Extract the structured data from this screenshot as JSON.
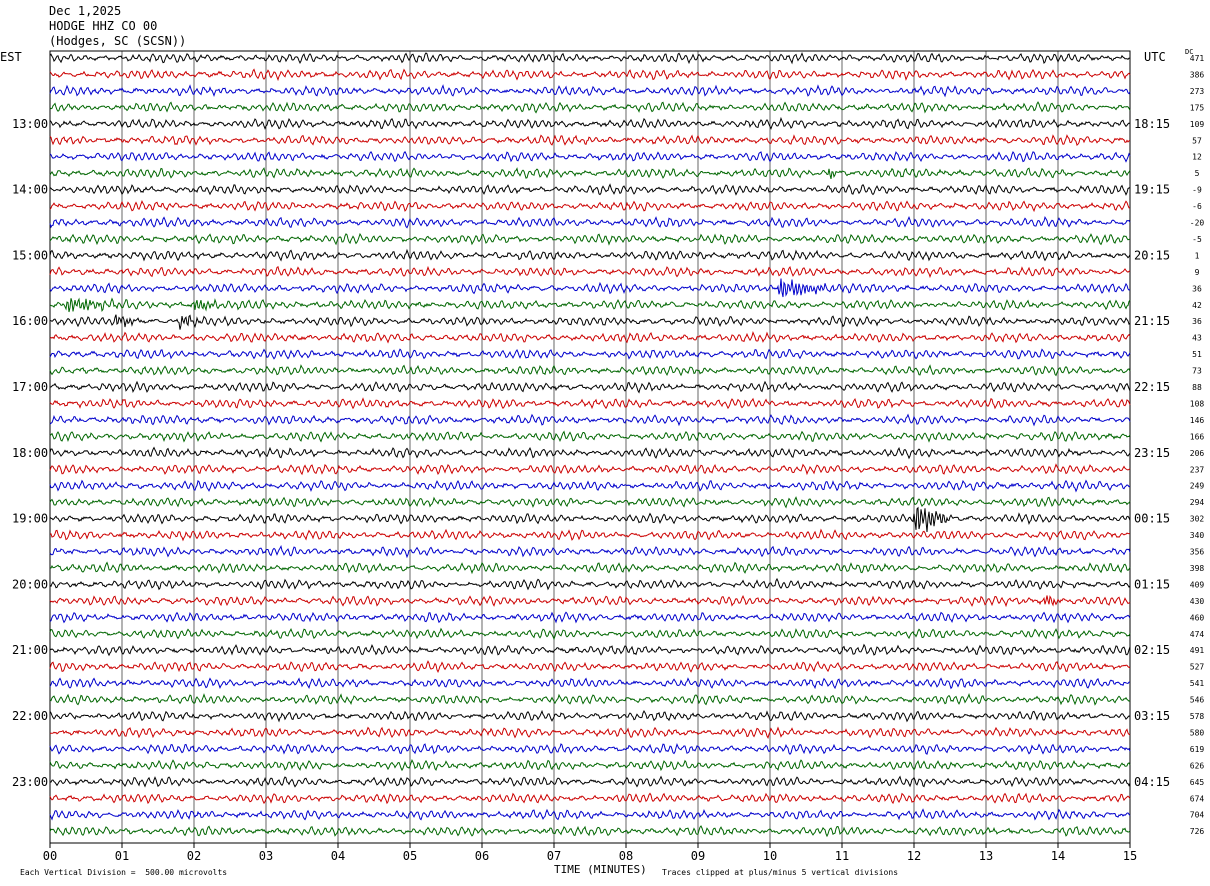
{
  "header": {
    "date": "Dec 1,2025",
    "station": "HODGE HHZ CO 00",
    "location": "(Hodges, SC (SCSN))"
  },
  "left_tz": "EST",
  "right_tz": "UTC",
  "dc_label": "DC",
  "footer": {
    "scale": "Each Vertical Division =  500.00 microvolts",
    "xlabel": "TIME (MINUTES)",
    "clip": "Traces clipped at plus/minus 5 vertical divisions"
  },
  "chart_data": {
    "type": "line",
    "title": "",
    "xlabel": "TIME (MINUTES)",
    "xlim": [
      0,
      15
    ],
    "x_ticks": [
      "00",
      "01",
      "02",
      "03",
      "04",
      "05",
      "06",
      "07",
      "08",
      "09",
      "10",
      "11",
      "12",
      "13",
      "14",
      "15"
    ],
    "rows_per_hour": 4,
    "minutes_per_row": 15,
    "trace_colors": [
      "#000000",
      "#cc0000",
      "#0000cc",
      "#006600"
    ],
    "hour_labels_left": [
      "13:00",
      "14:00",
      "15:00",
      "16:00",
      "17:00",
      "18:00",
      "19:00",
      "20:00",
      "21:00",
      "22:00",
      "23:00"
    ],
    "hour_labels_right": [
      "18:15",
      "19:15",
      "20:15",
      "21:15",
      "22:15",
      "23:15",
      "00:15",
      "01:15",
      "02:15",
      "03:15",
      "04:15"
    ],
    "dc_offsets": [
      "471",
      "386",
      "273",
      "175",
      "109",
      "57",
      "12",
      "5",
      "-9",
      "-6",
      "-20",
      "-5",
      "1",
      "9",
      "36",
      "42",
      "36",
      "43",
      "51",
      "73",
      "88",
      "108",
      "146",
      "166",
      "206",
      "237",
      "249",
      "294",
      "302",
      "340",
      "356",
      "398",
      "409",
      "430",
      "460",
      "474",
      "491",
      "527",
      "541",
      "546",
      "578",
      "580",
      "619",
      "626",
      "645",
      "674",
      "704",
      "726"
    ],
    "events": [
      {
        "row": 14,
        "minute": 10.1,
        "amplitude": 2.2,
        "duration_min": 0.9
      },
      {
        "row": 15,
        "minute": 0.2,
        "amplitude": 1.4,
        "duration_min": 1.0
      },
      {
        "row": 15,
        "minute": 2.0,
        "amplitude": 1.5,
        "duration_min": 0.4
      },
      {
        "row": 16,
        "minute": 0.9,
        "amplitude": 1.3,
        "duration_min": 0.4
      },
      {
        "row": 16,
        "minute": 1.8,
        "amplitude": 1.4,
        "duration_min": 0.4
      },
      {
        "row": 28,
        "minute": 12.0,
        "amplitude": 3.0,
        "duration_min": 0.6
      },
      {
        "row": 33,
        "minute": 13.8,
        "amplitude": 1.3,
        "duration_min": 0.3
      },
      {
        "row": 7,
        "minute": 10.8,
        "amplitude": 1.2,
        "duration_min": 0.2
      }
    ]
  }
}
